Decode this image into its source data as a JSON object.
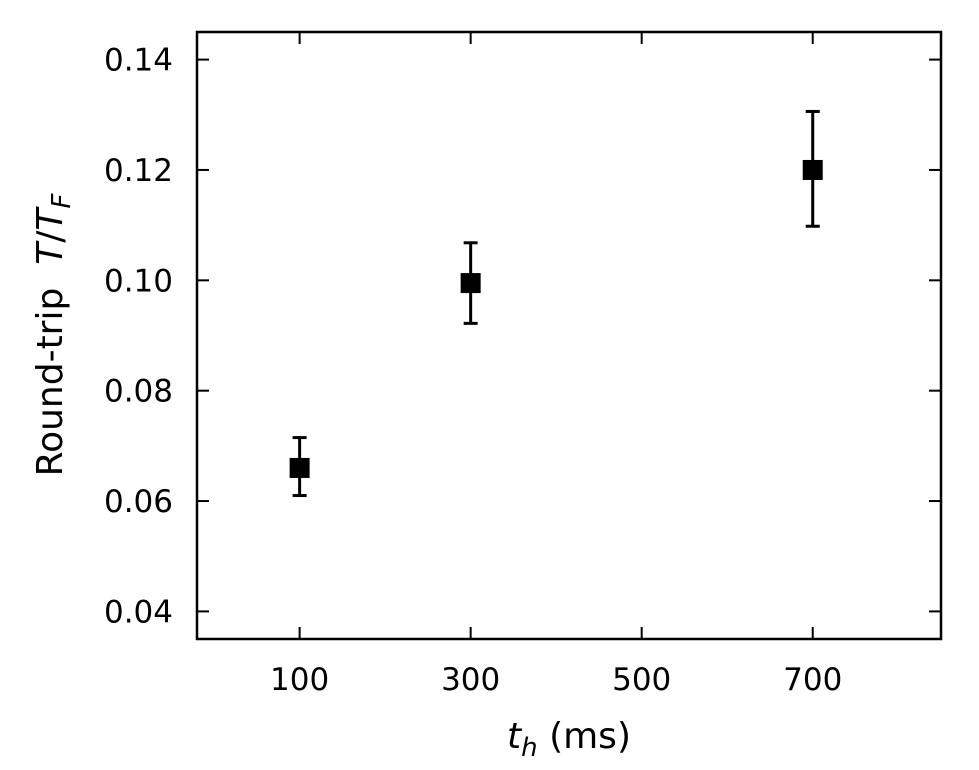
{
  "chart_data": {
    "type": "scatter",
    "x_ticks": [
      "100",
      "300",
      "500",
      "700"
    ],
    "y_ticks": [
      "0.04",
      "0.06",
      "0.08",
      "0.10",
      "0.12",
      "0.14"
    ],
    "xlim": [
      -20,
      850
    ],
    "ylim": [
      0.035,
      0.145
    ],
    "xlabel": {
      "main": "t",
      "sub": "h",
      "rest": " (ms)"
    },
    "ylabel": {
      "prefix": "Round-trip  ",
      "T1": "T",
      "slash": "/",
      "T2": "T",
      "sub": "F"
    },
    "grid": false,
    "points": [
      {
        "x": 100,
        "y": 0.066,
        "err_low": 0.061,
        "err_high": 0.0715
      },
      {
        "x": 300,
        "y": 0.0995,
        "err_low": 0.0922,
        "err_high": 0.1068
      },
      {
        "x": 700,
        "y": 0.12,
        "err_low": 0.1098,
        "err_high": 0.1306
      }
    ],
    "marker": "square",
    "color": "#000000"
  }
}
